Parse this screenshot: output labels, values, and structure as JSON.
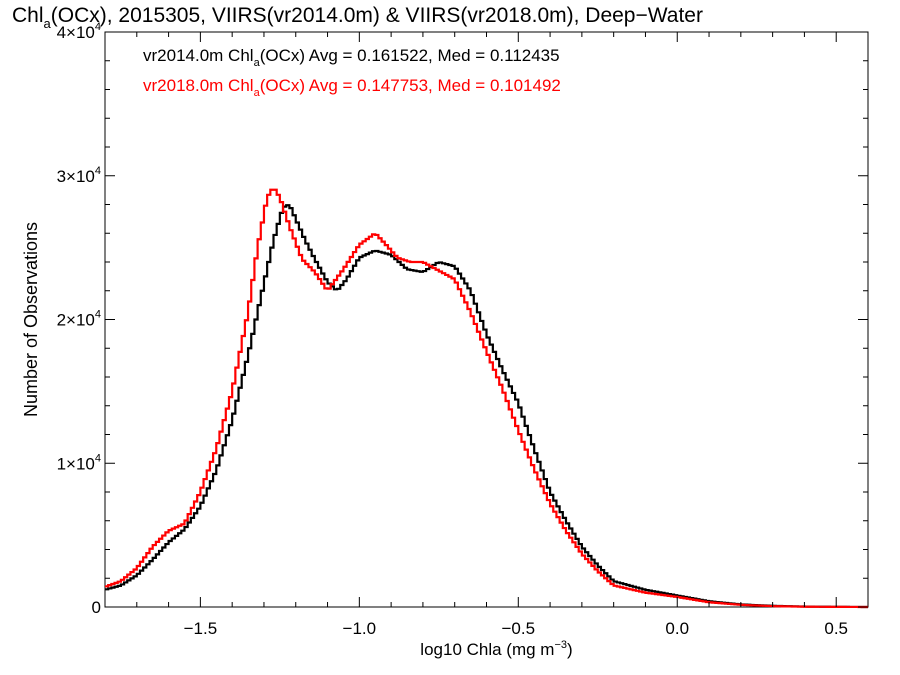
{
  "chart_data": {
    "type": "line",
    "style": "step-histogram",
    "title": {
      "part1": "Chl",
      "sub": "a",
      "part2": "(OCx), 2015305, VIIRS(vr2014.0m) & VIIRS(vr2018.0m), Deep−Water"
    },
    "xlabel": {
      "main": "log10 Chla (mg m",
      "sup": "−3",
      "close": ")"
    },
    "ylabel": "Number of Observations",
    "xlim": [
      -1.8,
      0.6
    ],
    "ylim": [
      0,
      40000
    ],
    "x_ticks": [
      {
        "value": -1.5,
        "label": "−1.5"
      },
      {
        "value": -1.0,
        "label": "−1.0"
      },
      {
        "value": -0.5,
        "label": "−0.5"
      },
      {
        "value": 0.0,
        "label": "0.0"
      },
      {
        "value": 0.5,
        "label": "0.5"
      }
    ],
    "y_ticks": [
      {
        "value": 0,
        "label": "0",
        "exp": ""
      },
      {
        "value": 10000,
        "label": "1×10",
        "exp": "4"
      },
      {
        "value": 20000,
        "label": "2×10",
        "exp": "4"
      },
      {
        "value": 30000,
        "label": "3×10",
        "exp": "4"
      },
      {
        "value": 40000,
        "label": "4×10",
        "exp": "4"
      }
    ],
    "grid": false,
    "legend_position": "top-left",
    "series": [
      {
        "name_parts": [
          "vr2014.0m Chl",
          "a",
          "(OCx) Avg = 0.161522, Med = 0.112435"
        ],
        "color": "#000000",
        "points": [
          [
            -1.8,
            1200
          ],
          [
            -1.75,
            1500
          ],
          [
            -1.7,
            2200
          ],
          [
            -1.65,
            3300
          ],
          [
            -1.6,
            4500
          ],
          [
            -1.55,
            5400
          ],
          [
            -1.5,
            7000
          ],
          [
            -1.45,
            9500
          ],
          [
            -1.4,
            13000
          ],
          [
            -1.35,
            17500
          ],
          [
            -1.3,
            22500
          ],
          [
            -1.27,
            25500
          ],
          [
            -1.24,
            27800
          ],
          [
            -1.22,
            28000
          ],
          [
            -1.2,
            27000
          ],
          [
            -1.17,
            25500
          ],
          [
            -1.14,
            24200
          ],
          [
            -1.1,
            22600
          ],
          [
            -1.07,
            22000
          ],
          [
            -1.04,
            22800
          ],
          [
            -1.0,
            24300
          ],
          [
            -0.95,
            24800
          ],
          [
            -0.9,
            24500
          ],
          [
            -0.85,
            23500
          ],
          [
            -0.8,
            23300
          ],
          [
            -0.75,
            24000
          ],
          [
            -0.7,
            23700
          ],
          [
            -0.65,
            22000
          ],
          [
            -0.6,
            19000
          ],
          [
            -0.55,
            16500
          ],
          [
            -0.5,
            14200
          ],
          [
            -0.45,
            11000
          ],
          [
            -0.4,
            8000
          ],
          [
            -0.35,
            6000
          ],
          [
            -0.3,
            4200
          ],
          [
            -0.25,
            2900
          ],
          [
            -0.2,
            1800
          ],
          [
            -0.1,
            1200
          ],
          [
            0.0,
            800
          ],
          [
            0.1,
            400
          ],
          [
            0.2,
            180
          ],
          [
            0.3,
            80
          ],
          [
            0.4,
            30
          ],
          [
            0.5,
            10
          ],
          [
            0.6,
            0
          ]
        ]
      },
      {
        "name_parts": [
          "vr2018.0m Chl",
          "a",
          "(OCx) Avg = 0.147753, Med = 0.101492"
        ],
        "color": "#ff0000",
        "points": [
          [
            -1.8,
            1400
          ],
          [
            -1.75,
            1800
          ],
          [
            -1.7,
            2700
          ],
          [
            -1.65,
            4200
          ],
          [
            -1.6,
            5300
          ],
          [
            -1.55,
            5800
          ],
          [
            -1.5,
            8000
          ],
          [
            -1.45,
            11000
          ],
          [
            -1.4,
            15000
          ],
          [
            -1.35,
            20500
          ],
          [
            -1.32,
            25000
          ],
          [
            -1.29,
            28500
          ],
          [
            -1.27,
            29200
          ],
          [
            -1.25,
            28500
          ],
          [
            -1.22,
            26500
          ],
          [
            -1.18,
            24200
          ],
          [
            -1.14,
            23300
          ],
          [
            -1.1,
            22000
          ],
          [
            -1.05,
            23500
          ],
          [
            -1.0,
            25200
          ],
          [
            -0.95,
            26000
          ],
          [
            -0.92,
            25300
          ],
          [
            -0.88,
            24300
          ],
          [
            -0.84,
            24000
          ],
          [
            -0.8,
            24000
          ],
          [
            -0.75,
            23400
          ],
          [
            -0.7,
            22800
          ],
          [
            -0.65,
            20500
          ],
          [
            -0.6,
            17800
          ],
          [
            -0.55,
            15200
          ],
          [
            -0.5,
            12300
          ],
          [
            -0.45,
            9600
          ],
          [
            -0.4,
            7200
          ],
          [
            -0.35,
            5300
          ],
          [
            -0.3,
            3700
          ],
          [
            -0.25,
            2500
          ],
          [
            -0.2,
            1500
          ],
          [
            -0.1,
            1000
          ],
          [
            0.0,
            700
          ],
          [
            0.1,
            330
          ],
          [
            0.2,
            150
          ],
          [
            0.3,
            60
          ],
          [
            0.4,
            20
          ],
          [
            0.5,
            8
          ],
          [
            0.6,
            0
          ]
        ]
      }
    ]
  }
}
